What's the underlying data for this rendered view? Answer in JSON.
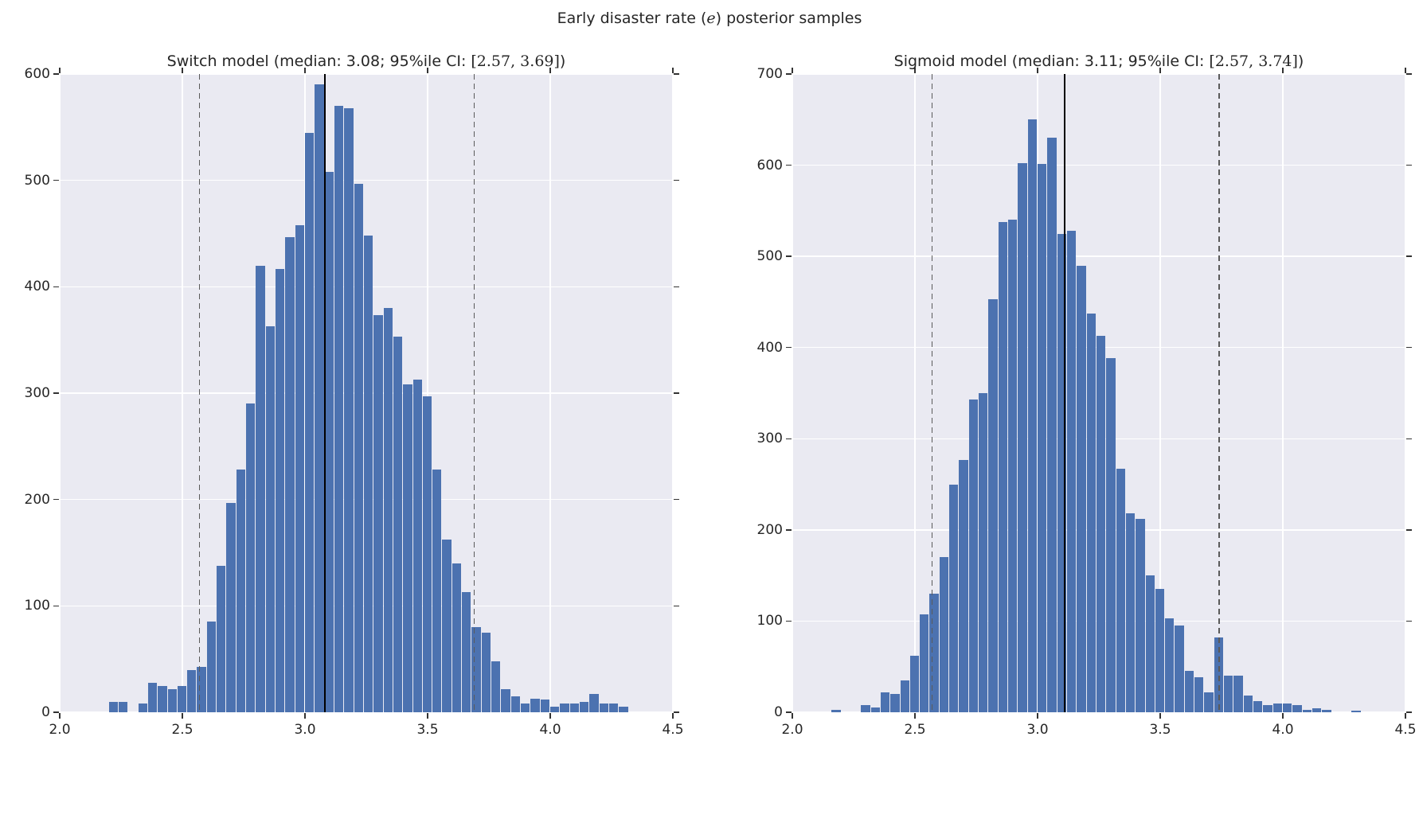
{
  "figure": {
    "title_prefix": "Early disaster rate (",
    "title_math": "e",
    "title_suffix": ") posterior samples"
  },
  "chart_data": {
    "type": "histogram",
    "title": "Early disaster rate (e) posterior samples",
    "xlabel": "",
    "ylabel": "",
    "legend": "none",
    "grid": true,
    "colors": {
      "bar": "#4C72B0",
      "plot_bg": "#EAEAF2",
      "grid": "#FFFFFF",
      "median_line": "#000000",
      "ci_line": "#5a5a5a",
      "text": "#262626"
    },
    "panels": [
      {
        "name": "switch-model",
        "title_prefix": "Switch model (median: 3.08; 95%ile CI: ",
        "title_math": "[2.57, 3.69]",
        "title_suffix": ")",
        "median": 3.08,
        "ci_low": 2.57,
        "ci_high": 3.69,
        "xlim": [
          2.0,
          4.5
        ],
        "ylim": [
          0,
          600
        ],
        "xticks": [
          2.0,
          2.5,
          3.0,
          3.5,
          4.0,
          4.5
        ],
        "yticks": [
          0,
          100,
          200,
          300,
          400,
          500,
          600
        ],
        "xtick_decimals": 1,
        "ytick_decimals": 0,
        "bin_width": 0.04,
        "bars": [
          [
            2.2,
            10
          ],
          [
            2.24,
            10
          ],
          [
            2.32,
            8
          ],
          [
            2.36,
            28
          ],
          [
            2.4,
            25
          ],
          [
            2.44,
            22
          ],
          [
            2.48,
            25
          ],
          [
            2.52,
            40
          ],
          [
            2.56,
            43
          ],
          [
            2.6,
            85
          ],
          [
            2.64,
            138
          ],
          [
            2.68,
            197
          ],
          [
            2.72,
            228
          ],
          [
            2.76,
            290
          ],
          [
            2.8,
            420
          ],
          [
            2.84,
            363
          ],
          [
            2.88,
            417
          ],
          [
            2.92,
            447
          ],
          [
            2.96,
            458
          ],
          [
            3.0,
            545
          ],
          [
            3.04,
            590
          ],
          [
            3.08,
            508
          ],
          [
            3.12,
            570
          ],
          [
            3.16,
            568
          ],
          [
            3.2,
            497
          ],
          [
            3.24,
            448
          ],
          [
            3.28,
            373
          ],
          [
            3.32,
            380
          ],
          [
            3.36,
            353
          ],
          [
            3.4,
            308
          ],
          [
            3.44,
            313
          ],
          [
            3.48,
            297
          ],
          [
            3.52,
            228
          ],
          [
            3.56,
            162
          ],
          [
            3.6,
            140
          ],
          [
            3.64,
            113
          ],
          [
            3.68,
            80
          ],
          [
            3.72,
            75
          ],
          [
            3.76,
            48
          ],
          [
            3.8,
            22
          ],
          [
            3.84,
            15
          ],
          [
            3.88,
            8
          ],
          [
            3.92,
            13
          ],
          [
            3.96,
            12
          ],
          [
            4.0,
            5
          ],
          [
            4.04,
            8
          ],
          [
            4.08,
            8
          ],
          [
            4.12,
            10
          ],
          [
            4.16,
            17
          ],
          [
            4.2,
            8
          ],
          [
            4.24,
            8
          ],
          [
            4.28,
            5
          ]
        ]
      },
      {
        "name": "sigmoid-model",
        "title_prefix": "Sigmoid model (median: 3.11; 95%ile CI: ",
        "title_math": "[2.57, 3.74]",
        "title_suffix": ")",
        "median": 3.11,
        "ci_low": 2.57,
        "ci_high": 3.74,
        "xlim": [
          2.0,
          4.5
        ],
        "ylim": [
          0,
          700
        ],
        "xticks": [
          2.0,
          2.5,
          3.0,
          3.5,
          4.0,
          4.5
        ],
        "yticks": [
          0,
          100,
          200,
          300,
          400,
          500,
          600,
          700
        ],
        "xtick_decimals": 1,
        "ytick_decimals": 0,
        "bin_width": 0.04,
        "bars": [
          [
            2.16,
            3
          ],
          [
            2.28,
            8
          ],
          [
            2.32,
            5
          ],
          [
            2.36,
            22
          ],
          [
            2.4,
            20
          ],
          [
            2.44,
            35
          ],
          [
            2.48,
            62
          ],
          [
            2.52,
            107
          ],
          [
            2.56,
            130
          ],
          [
            2.6,
            170
          ],
          [
            2.64,
            250
          ],
          [
            2.68,
            277
          ],
          [
            2.72,
            343
          ],
          [
            2.76,
            350
          ],
          [
            2.8,
            453
          ],
          [
            2.84,
            538
          ],
          [
            2.88,
            540
          ],
          [
            2.92,
            602
          ],
          [
            2.96,
            650
          ],
          [
            3.0,
            601
          ],
          [
            3.04,
            630
          ],
          [
            3.08,
            525
          ],
          [
            3.12,
            528
          ],
          [
            3.16,
            490
          ],
          [
            3.2,
            437
          ],
          [
            3.24,
            413
          ],
          [
            3.28,
            388
          ],
          [
            3.32,
            267
          ],
          [
            3.36,
            218
          ],
          [
            3.4,
            212
          ],
          [
            3.44,
            150
          ],
          [
            3.48,
            135
          ],
          [
            3.52,
            103
          ],
          [
            3.56,
            95
          ],
          [
            3.6,
            45
          ],
          [
            3.64,
            38
          ],
          [
            3.68,
            22
          ],
          [
            3.72,
            82
          ],
          [
            3.76,
            40
          ],
          [
            3.8,
            40
          ],
          [
            3.84,
            18
          ],
          [
            3.88,
            12
          ],
          [
            3.92,
            8
          ],
          [
            3.96,
            10
          ],
          [
            4.0,
            10
          ],
          [
            4.04,
            8
          ],
          [
            4.08,
            3
          ],
          [
            4.12,
            4
          ],
          [
            4.16,
            3
          ],
          [
            4.28,
            2
          ]
        ]
      }
    ]
  }
}
